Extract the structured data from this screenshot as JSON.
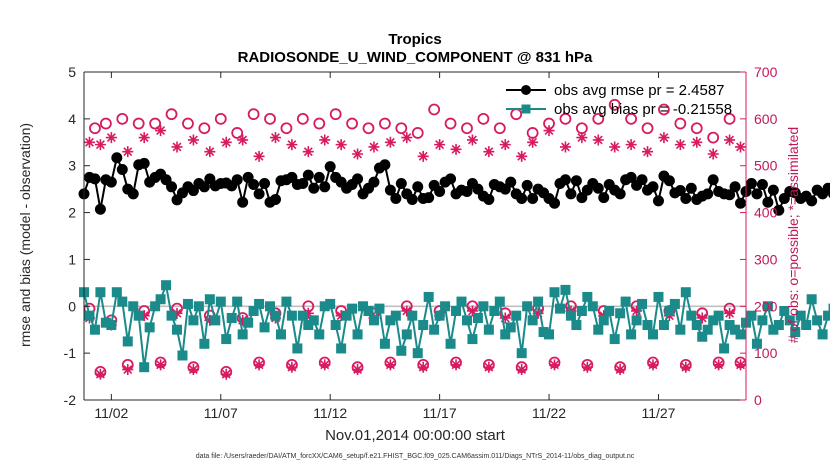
{
  "chart_data": {
    "type": "line",
    "title": "Tropics",
    "subtitle": "RADIOSONDE_U_WIND_COMPONENT @ 831 hPa",
    "xlabel": "Nov.01,2014 00:00:00 start",
    "ylabel_left": "rmse and bias (model - observation)",
    "ylabel_right": "# of obs: o=possible; *=assimilated",
    "ylim_left": [
      -2,
      5
    ],
    "yticks_left": [
      -2,
      -1,
      0,
      1,
      2,
      3,
      4,
      5
    ],
    "ylim_right": [
      0,
      700
    ],
    "yticks_right": [
      0,
      100,
      200,
      300,
      400,
      500,
      600,
      700
    ],
    "xlim": [
      0.25,
      30.5
    ],
    "xticks": [
      1.5,
      6.5,
      11.5,
      16.5,
      21.5,
      26.5
    ],
    "xtick_labels": [
      "11/02",
      "11/07",
      "11/12",
      "11/17",
      "11/22",
      "11/27"
    ],
    "x_start": 0.25,
    "x_step": 0.25,
    "legend": {
      "position": "top-right",
      "entries": [
        "obs avg rmse pr = 2.4587",
        "obs avg bias pr = -0.21558"
      ]
    },
    "footnote": "data file: /Users/raeder/DAI/ATM_forcXX/CAM6_setup/f.e21.FHIST_BGC.f09_025.CAM6assim.011/Diags_NTrS_2014-11/obs_diag_output.nc",
    "colors": {
      "rmse": "#000000",
      "bias": "#1a8a8a",
      "count": "#d81b60",
      "zero_line": "#bfbfbf"
    },
    "series": [
      {
        "name": "obs avg rmse pr",
        "axis": "left",
        "values": [
          2.4,
          2.75,
          2.72,
          2.07,
          2.7,
          2.65,
          3.17,
          2.92,
          2.5,
          2.4,
          3.02,
          3.05,
          2.65,
          2.75,
          2.82,
          2.7,
          2.55,
          2.27,
          2.42,
          2.55,
          2.47,
          2.62,
          2.55,
          2.72,
          2.57,
          2.62,
          2.63,
          2.57,
          2.7,
          2.22,
          2.75,
          2.6,
          2.4,
          2.62,
          2.22,
          2.28,
          2.68,
          2.7,
          2.75,
          2.6,
          2.62,
          2.8,
          2.52,
          2.75,
          2.55,
          2.98,
          2.75,
          2.65,
          2.52,
          2.6,
          2.72,
          2.4,
          2.52,
          2.65,
          2.95,
          3.02,
          2.48,
          2.3,
          2.62,
          2.4,
          2.28,
          2.55,
          2.3,
          2.32,
          2.58,
          2.45,
          2.65,
          2.72,
          2.4,
          2.48,
          2.45,
          2.62,
          2.5,
          2.35,
          2.28,
          2.6,
          2.55,
          2.5,
          2.65,
          2.4,
          2.3,
          2.58,
          2.3,
          2.5,
          2.42,
          2.3,
          2.2,
          2.62,
          2.7,
          2.4,
          2.68,
          2.32,
          2.48,
          2.62,
          2.52,
          2.32,
          2.6,
          2.48,
          2.4,
          2.7,
          2.75,
          2.58,
          2.7,
          2.48,
          2.55,
          2.25,
          2.78,
          2.68,
          2.42,
          2.47,
          2.3,
          2.52,
          2.28,
          2.35,
          2.4,
          2.7,
          2.45,
          2.4,
          2.38,
          2.55,
          2.2,
          2.45,
          2.62,
          2.4,
          2.6,
          2.22,
          2.48,
          2.05,
          2.3,
          2.45,
          2.42,
          2.3,
          2.35,
          2.25,
          2.48,
          2.4,
          2.52,
          2.4,
          2.3,
          2.28,
          2.6,
          2.4,
          2.35,
          2.2,
          2.38,
          2.48,
          2.3,
          2.42,
          2.28,
          2.25,
          2.32,
          2.48,
          2.55,
          2.42,
          2.55,
          2.25,
          2.32,
          2.38,
          2.45,
          2.62,
          2.55,
          2.4,
          2.15,
          2.45,
          2.6,
          2.25,
          2.4,
          2.62,
          2.55,
          2.48,
          2.7
        ]
      },
      {
        "name": "obs avg bias pr",
        "axis": "left",
        "values": [
          0.3,
          -0.2,
          -0.5,
          0.3,
          -0.35,
          -0.4,
          0.3,
          0.1,
          -0.75,
          0.0,
          -0.2,
          -1.3,
          -0.45,
          0.0,
          0.15,
          0.45,
          -0.2,
          -0.5,
          -1.05,
          0.05,
          -0.3,
          0.0,
          -0.8,
          0.15,
          -0.3,
          0.1,
          -0.7,
          -0.25,
          0.1,
          -0.6,
          -0.35,
          -0.1,
          0.05,
          -0.45,
          0.0,
          -0.2,
          -0.6,
          0.1,
          -0.2,
          -0.9,
          -0.2,
          -0.4,
          -0.3,
          -0.6,
          0.0,
          0.05,
          -0.4,
          -0.9,
          -0.2,
          -0.05,
          -0.6,
          0.0,
          -0.1,
          -0.3,
          -0.05,
          -0.8,
          -0.3,
          -0.2,
          -0.95,
          -0.6,
          -0.2,
          -1.0,
          -0.4,
          0.2,
          -0.5,
          -0.2,
          0.0,
          -0.8,
          -0.1,
          0.1,
          -0.3,
          -0.7,
          -0.25,
          0.0,
          -0.5,
          -0.1,
          0.1,
          -0.6,
          -0.45,
          -0.2,
          -1.0,
          0.0,
          -0.3,
          0.1,
          -0.55,
          -0.6,
          0.3,
          -0.05,
          0.35,
          -0.2,
          -0.4,
          -0.1,
          0.2,
          0.0,
          -0.5,
          -0.3,
          -0.1,
          -0.7,
          -0.15,
          0.1,
          -0.6,
          -0.3,
          0.05,
          -0.4,
          -0.6,
          0.2,
          -0.4,
          -0.1,
          0.05,
          -0.5,
          0.3,
          -0.2,
          -0.4,
          -0.65,
          -0.5,
          -0.3,
          -0.2,
          -0.9,
          -0.4,
          -0.5,
          -0.6,
          -0.35,
          -0.2,
          -0.8,
          -0.3,
          0.0,
          -0.5,
          -0.4,
          -0.1,
          -0.3,
          -0.55,
          -0.2,
          -0.4,
          0.15,
          -0.3,
          -0.6,
          -0.2,
          -0.05,
          -0.4,
          -0.3,
          -0.7,
          -0.4,
          0.0,
          -0.6,
          -0.25,
          -0.3,
          0.05,
          -0.2,
          -0.45,
          -0.5,
          0.0,
          -0.6,
          -0.1,
          -0.3,
          -0.2,
          -0.5,
          -0.8,
          -0.45,
          -0.3,
          -0.55,
          -0.45,
          -0.8,
          -0.4,
          -0.25,
          -0.45,
          -0.7,
          -0.3,
          -0.2,
          -0.5,
          0.4,
          -0.35,
          -0.15,
          0.25,
          0.15
        ]
      },
      {
        "name": "possible (o)",
        "axis": "right",
        "x": [
          0.75,
          1.25,
          2.0,
          2.75,
          3.5,
          4.25,
          5.0,
          5.75,
          6.5,
          7.25,
          8.0,
          8.75,
          9.5,
          10.25,
          11.0,
          11.75,
          12.5,
          13.25,
          14.0,
          14.75,
          15.5,
          16.25,
          17.0,
          17.75,
          18.5,
          19.25,
          20.0,
          20.75,
          21.5,
          22.25,
          23.0,
          23.75,
          24.5,
          25.25,
          26.0,
          26.75,
          27.5,
          28.25,
          29.0,
          29.75
        ],
        "values": [
          580,
          590,
          600,
          590,
          590,
          610,
          590,
          580,
          600,
          570,
          610,
          600,
          580,
          600,
          590,
          610,
          590,
          580,
          590,
          580,
          570,
          620,
          590,
          580,
          600,
          580,
          610,
          570,
          590,
          600,
          580,
          600,
          630,
          600,
          580,
          620,
          590,
          580,
          560,
          600
        ]
      },
      {
        "name": "assimilated (*)",
        "axis": "right",
        "x": [
          0.5,
          1.0,
          1.5,
          2.25,
          3.0,
          3.75,
          4.5,
          5.25,
          6.0,
          6.75,
          7.5,
          8.25,
          9.0,
          9.75,
          10.5,
          11.25,
          12.0,
          12.75,
          13.5,
          14.25,
          15.0,
          15.75,
          16.5,
          17.25,
          18.0,
          18.75,
          19.5,
          20.25,
          20.75,
          21.5,
          22.25,
          23.0,
          23.75,
          24.5,
          25.25,
          26.0,
          26.75,
          27.5,
          28.25,
          29.0,
          29.75,
          30.25
        ],
        "values": [
          550,
          545,
          560,
          530,
          560,
          575,
          540,
          555,
          530,
          550,
          555,
          520,
          560,
          545,
          530,
          555,
          545,
          525,
          540,
          550,
          560,
          520,
          545,
          535,
          555,
          530,
          545,
          520,
          550,
          575,
          540,
          560,
          555,
          540,
          545,
          530,
          560,
          545,
          550,
          525,
          555,
          540
        ]
      },
      {
        "name": "possible low (o)",
        "axis": "right",
        "x": [
          0.5,
          1.0,
          1.5,
          2.25,
          3.0,
          3.75,
          4.5,
          5.25,
          6.0,
          6.75,
          7.5,
          8.25,
          9.0,
          9.75,
          10.5,
          11.25,
          12.0,
          12.75,
          13.5,
          14.25,
          15.0,
          15.75,
          16.5,
          17.25,
          18.0,
          18.75,
          19.5,
          20.25,
          21.0,
          21.75,
          22.5,
          23.25,
          24.0,
          24.75,
          25.5,
          26.25,
          27.0,
          27.75,
          28.5,
          29.25,
          29.75,
          30.25
        ],
        "values": [
          195,
          60,
          170,
          75,
          190,
          80,
          195,
          70,
          180,
          60,
          175,
          80,
          185,
          75,
          200,
          80,
          190,
          70,
          185,
          80,
          200,
          75,
          190,
          80,
          200,
          75,
          185,
          70,
          195,
          80,
          200,
          75,
          190,
          70,
          200,
          80,
          190,
          75,
          185,
          80,
          195,
          80
        ]
      },
      {
        "name": "assimilated low (*)",
        "axis": "right",
        "x": [
          0.5,
          1.0,
          1.5,
          2.25,
          3.0,
          3.75,
          4.5,
          5.25,
          6.0,
          6.75,
          7.5,
          8.25,
          9.0,
          9.75,
          10.5,
          11.25,
          12.0,
          12.75,
          13.5,
          14.25,
          15.0,
          15.75,
          16.5,
          17.25,
          18.0,
          18.75,
          19.5,
          20.25,
          21.0,
          21.75,
          22.5,
          23.25,
          24.0,
          24.75,
          25.5,
          26.25,
          27.0,
          27.75,
          28.5,
          29.25,
          29.75,
          30.25
        ],
        "values": [
          175,
          55,
          160,
          65,
          180,
          75,
          185,
          65,
          170,
          55,
          170,
          75,
          175,
          70,
          185,
          75,
          180,
          65,
          175,
          75,
          190,
          70,
          180,
          75,
          190,
          70,
          175,
          65,
          185,
          75,
          190,
          70,
          180,
          65,
          190,
          75,
          180,
          70,
          175,
          75,
          185,
          75
        ]
      }
    ]
  }
}
